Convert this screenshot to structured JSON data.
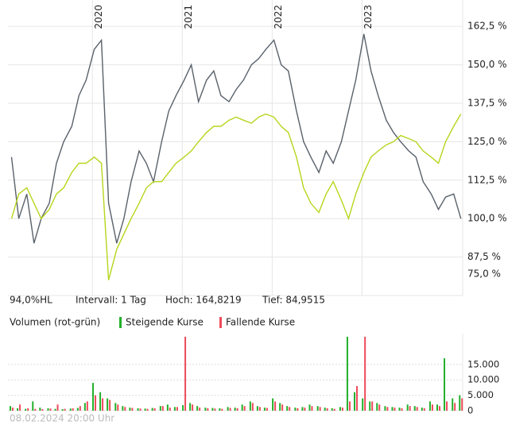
{
  "chart_data": [
    {
      "type": "line",
      "annotations": [
        "94,0%HL",
        "Intervall: 1 Tag",
        "Hoch: 164,8219",
        "Tief: 84,9515"
      ],
      "x": [
        2019.1,
        2019.18,
        2019.27,
        2019.35,
        2019.43,
        2019.52,
        2019.6,
        2019.68,
        2019.77,
        2019.85,
        2019.93,
        2020.02,
        2020.1,
        2020.18,
        2020.27,
        2020.35,
        2020.43,
        2020.52,
        2020.6,
        2020.68,
        2020.77,
        2020.85,
        2020.93,
        2021.02,
        2021.1,
        2021.18,
        2021.27,
        2021.35,
        2021.43,
        2021.52,
        2021.6,
        2021.68,
        2021.77,
        2021.85,
        2021.93,
        2022.02,
        2022.1,
        2022.18,
        2022.27,
        2022.35,
        2022.43,
        2022.52,
        2022.6,
        2022.68,
        2022.77,
        2022.85,
        2022.93,
        2023.02,
        2023.1,
        2023.18,
        2023.27,
        2023.35,
        2023.43,
        2023.52,
        2023.6,
        2023.68,
        2023.77,
        2023.85,
        2023.93,
        2024.02,
        2024.1
      ],
      "series": [
        {
          "color": "#59616a",
          "values": [
            120,
            100,
            108,
            92,
            100,
            105,
            118,
            125,
            130,
            140,
            145,
            155,
            158,
            105,
            92,
            100,
            112,
            122,
            118,
            112,
            125,
            135,
            140,
            145,
            150,
            138,
            145,
            148,
            140,
            138,
            142,
            145,
            150,
            152,
            155,
            158,
            150,
            148,
            135,
            125,
            120,
            115,
            122,
            118,
            125,
            135,
            145,
            160,
            148,
            140,
            132,
            128,
            125,
            122,
            120,
            112,
            108,
            103,
            107,
            108,
            100
          ]
        },
        {
          "color": "#b5d61c",
          "values": [
            100,
            108,
            110,
            105,
            100,
            103,
            108,
            110,
            115,
            118,
            118,
            120,
            118,
            80,
            90,
            95,
            100,
            105,
            110,
            112,
            112,
            115,
            118,
            120,
            122,
            125,
            128,
            130,
            130,
            132,
            133,
            132,
            131,
            133,
            134,
            133,
            130,
            128,
            120,
            110,
            105,
            102,
            108,
            112,
            106,
            100,
            108,
            115,
            120,
            122,
            124,
            125,
            127,
            126,
            125,
            122,
            120,
            118,
            125,
            130,
            134
          ]
        }
      ],
      "xlim": [
        2019.06,
        2024.12
      ],
      "xticks": [
        2020,
        2021,
        2022,
        2023
      ],
      "ylim": [
        75,
        165.9
      ],
      "yticks": [
        {
          "value": 75,
          "label": "75,0 %"
        },
        {
          "value": 87.5,
          "label": "87,5 %"
        },
        {
          "value": 100,
          "label": "100,0 %"
        },
        {
          "value": 112.5,
          "label": "112,5 %"
        },
        {
          "value": 125,
          "label": "125,0 %"
        },
        {
          "value": 137.5,
          "label": "137,5 %"
        },
        {
          "value": 150,
          "label": "150,0 %"
        },
        {
          "value": 162.5,
          "label": "162,5 %"
        }
      ],
      "grid": true
    },
    {
      "type": "bar",
      "title": "Volumen (rot-grün)",
      "series": [
        {
          "name": "Steigende Kurse",
          "color": "#22b02a",
          "values": [
            1500,
            800,
            600,
            3000,
            1000,
            800,
            600,
            500,
            700,
            900,
            2500,
            9000,
            6000,
            4000,
            2500,
            1500,
            1000,
            800,
            700,
            900,
            1500,
            2000,
            1200,
            1800,
            2500,
            1500,
            1000,
            900,
            800,
            1200,
            1000,
            2000,
            3000,
            1500,
            1000,
            4000,
            2500,
            1500,
            1000,
            1200,
            2000,
            1500,
            1000,
            800,
            1200,
            24000,
            6000,
            4000,
            3000,
            2500,
            1500,
            1200,
            1000,
            2000,
            1500,
            1000,
            3000,
            2000,
            17000,
            4000,
            5000
          ]
        },
        {
          "name": "Fallende Kurse",
          "color": "#ee4a5a",
          "values": [
            1000,
            2000,
            800,
            600,
            500,
            700,
            2000,
            600,
            800,
            1500,
            3000,
            5000,
            4000,
            3500,
            2000,
            1200,
            900,
            700,
            600,
            800,
            1500,
            1000,
            1200,
            24000,
            2000,
            1000,
            800,
            700,
            600,
            900,
            800,
            1500,
            2500,
            1200,
            900,
            3000,
            2000,
            1200,
            800,
            1000,
            1500,
            1200,
            800,
            600,
            1000,
            3000,
            8000,
            24000,
            3000,
            2000,
            1200,
            1000,
            800,
            1500,
            1200,
            800,
            2000,
            1500,
            3000,
            2500,
            4000
          ]
        }
      ],
      "ylim": [
        0,
        25000
      ],
      "yticks": [
        0,
        {
          "value": 5000,
          "label": "5.000"
        },
        {
          "value": 10000,
          "label": "10.000"
        },
        {
          "value": 15000,
          "label": "15.000"
        }
      ],
      "grid": true
    }
  ],
  "footer": "08.02.2024 20:00 Uhr"
}
